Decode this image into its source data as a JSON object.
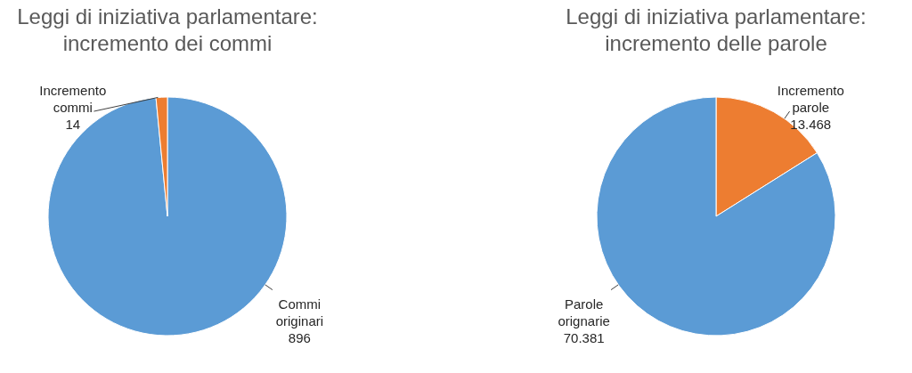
{
  "chart_data": [
    {
      "type": "pie",
      "title": "Leggi di iniziativa parlamentare: incremento dei commi",
      "categories": [
        "Commi originari",
        "Incremento commi"
      ],
      "values": [
        896,
        14
      ],
      "colors": [
        "#5b9bd5",
        "#ed7d31"
      ],
      "value_labels": [
        "896",
        "14"
      ]
    },
    {
      "type": "pie",
      "title": "Leggi di iniziativa parlamentare: incremento delle parole",
      "categories": [
        "Incremento parole",
        "Parole orignarie"
      ],
      "values": [
        13468,
        70381
      ],
      "colors": [
        "#ed7d31",
        "#5b9bd5"
      ],
      "value_labels": [
        "13.468",
        "70.381"
      ]
    }
  ]
}
